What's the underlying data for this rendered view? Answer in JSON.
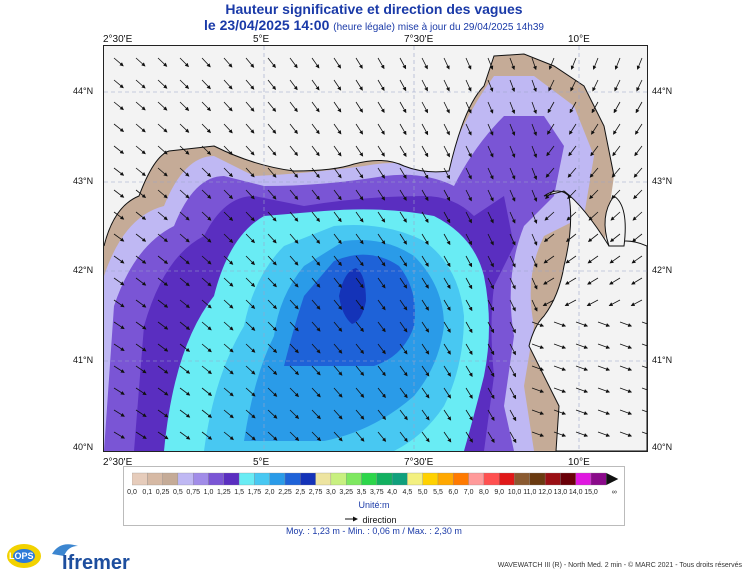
{
  "title": {
    "line1": "Hauteur significative et direction des vagues",
    "line2_main": "le 23/04/2025 14:00",
    "line2_sub": "(heure légale) mise à jour du 29/04/2025 14h39"
  },
  "map": {
    "lon_labels": [
      "2°30'E",
      "5°E",
      "7°30'E",
      "10°E"
    ],
    "lat_labels": [
      "44°N",
      "43°N",
      "42°N",
      "41°N",
      "40°N"
    ],
    "colors": {
      "land": "#f3f3f3",
      "coast": "#111111",
      "grid": "#9aa4c8"
    }
  },
  "legend": {
    "labels": [
      "0,0",
      "0,1",
      "0,25",
      "0,5",
      "0,75",
      "1,0",
      "1,25",
      "1,5",
      "1,75",
      "2,0",
      "2,25",
      "2,5",
      "2,75",
      "3,0",
      "3,25",
      "3,5",
      "3,75",
      "4,0",
      "4,5",
      "5,0",
      "5,5",
      "6,0",
      "7,0",
      "8,0",
      "9,0",
      "10,0",
      "11,0",
      "12,0",
      "13,0",
      "14,0",
      "15,0"
    ],
    "colors": [
      "#e6ccbb",
      "#d6b9a4",
      "#c5ab97",
      "#bfb8f3",
      "#a18ce8",
      "#7a55d5",
      "#5a2ec0",
      "#69ecf4",
      "#48c8f2",
      "#2a9be8",
      "#1e62d8",
      "#1433b8",
      "#ede4a0",
      "#c8f080",
      "#7ee860",
      "#2cd64a",
      "#12b060",
      "#10a07c",
      "#f3f080",
      "#ffd100",
      "#ffa800",
      "#ff7a00",
      "#ff9a9a",
      "#ff5050",
      "#e01818",
      "#8a5a30",
      "#6a3a10",
      "#9a0f14",
      "#6a0008",
      "#e018e0",
      "#8a0a8a"
    ],
    "overflow_symbol": "∞",
    "unit": "Unité:m",
    "direction_label": "direction"
  },
  "stats": {
    "text": "Moy. : 1,23 m   -   Min. : 0,06 m / Max. : 2,30 m"
  },
  "logos": {
    "lops": "LOPS",
    "ifremer": "Ifremer"
  },
  "credit": "WAVEWATCH III (R) - North Med. 2 min - © MARC 2021 - Tous droits réservés"
}
